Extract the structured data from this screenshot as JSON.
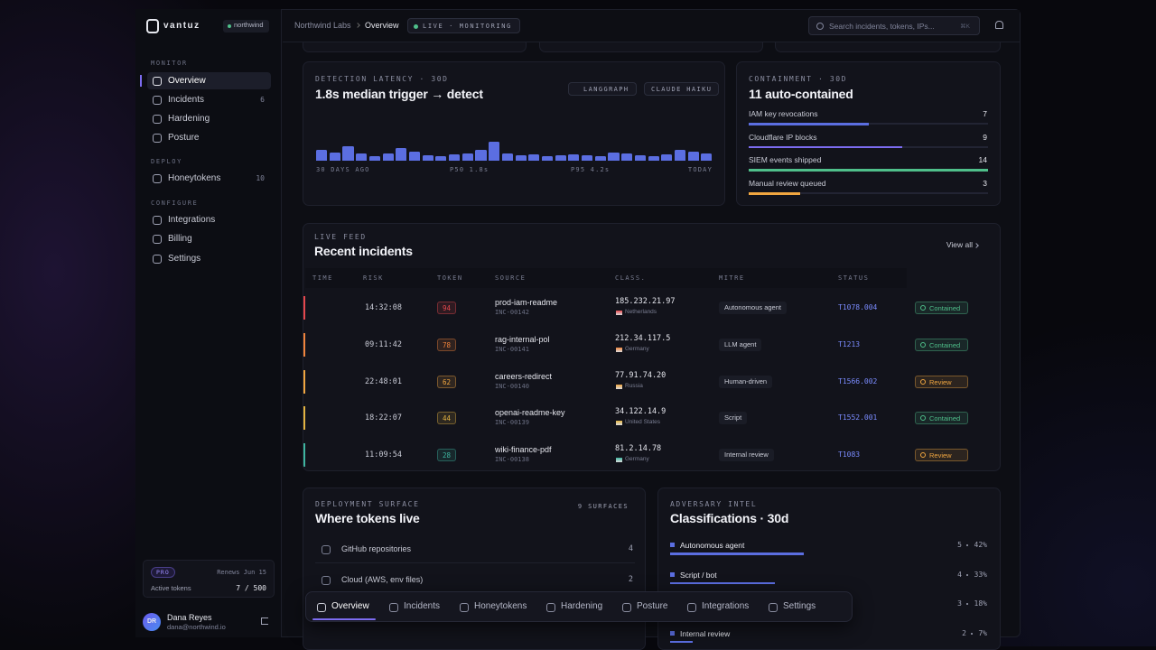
{
  "brand": "vantuz",
  "workspace": "northwind",
  "sidebar": {
    "sections": [
      {
        "title": "MONITOR",
        "items": [
          {
            "label": "Overview"
          },
          {
            "label": "Incidents",
            "count": 6
          },
          {
            "label": "Hardening"
          },
          {
            "label": "Posture"
          }
        ]
      },
      {
        "title": "DEPLOY",
        "items": [
          {
            "label": "Honeytokens",
            "count": 10
          }
        ]
      },
      {
        "title": "CONFIGURE",
        "items": [
          {
            "label": "Integrations"
          },
          {
            "label": "Billing"
          },
          {
            "label": "Settings"
          }
        ]
      }
    ],
    "plan": {
      "badge": "PRO",
      "renews": "Renews Jun 15",
      "usage_label": "Active tokens",
      "usage": "7 / 500"
    },
    "user": {
      "initials": "DR",
      "name": "Dana Reyes",
      "email": "dana@northwind.io"
    }
  },
  "topbar": {
    "breadcrumb": [
      "Northwind Labs",
      "Overview"
    ],
    "status": "LIVE · MONITORING",
    "search": "Search incidents, tokens, IPs...",
    "shortcut": "⌘K"
  },
  "latency": {
    "label": "DETECTION LATENCY · 30D",
    "title": "1.8s median trigger → detect",
    "chips": [
      "LANGGRAPH",
      "CLAUDE HAIKU"
    ],
    "chart_data": {
      "type": "bar",
      "color": "#5b6ee1",
      "ylim": [
        0,
        24
      ],
      "values": [
        12,
        9,
        16,
        8,
        5,
        8,
        14,
        10,
        6,
        5,
        7,
        8,
        12,
        21,
        8,
        6,
        7,
        5,
        6,
        7,
        6,
        5,
        9,
        8,
        6,
        5,
        7,
        12,
        10,
        8
      ]
    },
    "axis_labels": [
      "30 DAYS AGO",
      "P50 1.8s",
      "P95 4.2s",
      "TODAY"
    ]
  },
  "containment": {
    "label": "CONTAINMENT · 30D",
    "title": "11 auto-contained",
    "rows": [
      {
        "name": "IAM key revocations",
        "value": 7,
        "color": "#5b6ee1"
      },
      {
        "name": "Cloudflare IP blocks",
        "value": 9,
        "color": "#7c6cf0"
      },
      {
        "name": "SIEM events shipped",
        "value": 14,
        "color": "#4fbf8a"
      },
      {
        "name": "Manual review queued",
        "value": 3,
        "color": "#f0a640"
      }
    ]
  },
  "incidents": {
    "label": "LIVE FEED",
    "title": "Recent incidents",
    "link": "View all",
    "columns": [
      "TIME",
      "RISK",
      "TOKEN",
      "SOURCE",
      "CLASS.",
      "MITRE",
      "STATUS"
    ],
    "rows": [
      {
        "time": "14:32:08",
        "risk": "94",
        "token": "prod-iam-readme",
        "id": "INC-00142",
        "ip": "185.232.21.97",
        "country": "Netherlands",
        "class": "Autonomous agent",
        "mitre": "T1078.004",
        "status": "Contained",
        "color": "#e5484d",
        "status_color": "#4fbf8a"
      },
      {
        "time": "09:11:42",
        "risk": "78",
        "token": "rag-internal-pol",
        "id": "INC-00141",
        "ip": "212.34.117.5",
        "country": "Germany",
        "class": "LLM agent",
        "mitre": "T1213",
        "status": "Contained",
        "color": "#f0843c",
        "status_color": "#4fbf8a"
      },
      {
        "time": "22:48:01",
        "risk": "62",
        "token": "careers-redirect",
        "id": "INC-00140",
        "ip": "77.91.74.20",
        "country": "Russia",
        "class": "Human-driven",
        "mitre": "T1566.002",
        "status": "Review",
        "color": "#f0a640",
        "status_color": "#f0a640"
      },
      {
        "time": "18:22:07",
        "risk": "44",
        "token": "openai-readme-key",
        "id": "INC-00139",
        "ip": "34.122.14.9",
        "country": "United States",
        "class": "Script",
        "mitre": "T1552.001",
        "status": "Contained",
        "color": "#e3b341",
        "status_color": "#4fbf8a"
      },
      {
        "time": "11:09:54",
        "risk": "28",
        "token": "wiki-finance-pdf",
        "id": "INC-00138",
        "ip": "81.2.14.78",
        "country": "Germany",
        "class": "Internal review",
        "mitre": "T1083",
        "status": "Review",
        "color": "#3fb5a0",
        "status_color": "#f0a640"
      }
    ]
  },
  "deployment": {
    "label": "DEPLOYMENT SURFACE",
    "badge": "9 SURFACES",
    "title": "Where tokens live",
    "rows": [
      {
        "name": "GitHub repositories",
        "count": "4"
      },
      {
        "name": "Cloud (AWS, env files)",
        "count": "2"
      }
    ]
  },
  "adversary": {
    "label": "ADVERSARY INTEL",
    "title": "Classifications · 30d",
    "rows": [
      {
        "name": "Autonomous agent",
        "count": "5",
        "share": 42,
        "share_label": "42%"
      },
      {
        "name": "Script / bot",
        "count": "4",
        "share": 33,
        "share_label": "33%"
      },
      {
        "name": null,
        "count": "3",
        "share": 18,
        "share_label": "18%"
      },
      {
        "name": "Internal review",
        "count": "2",
        "share": 7,
        "share_label": "7%"
      }
    ]
  },
  "bottom_nav": [
    "Overview",
    "Incidents",
    "Honeytokens",
    "Hardening",
    "Posture",
    "Integrations",
    "Settings"
  ]
}
